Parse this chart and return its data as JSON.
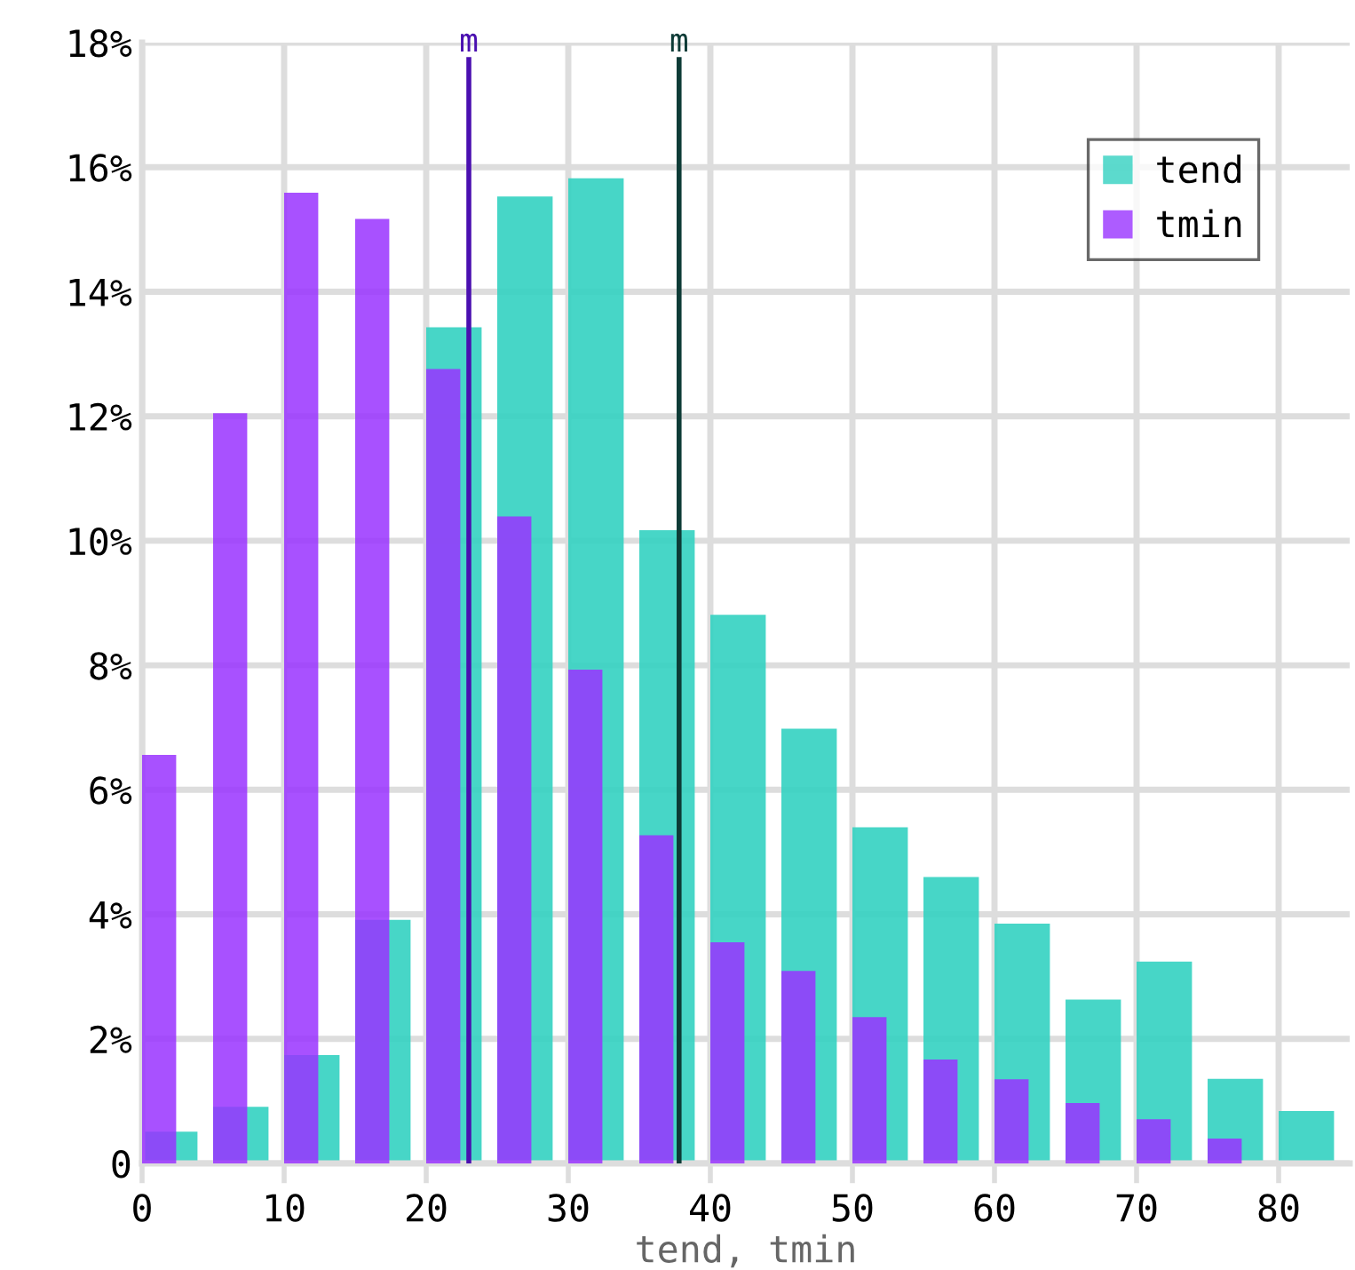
{
  "chart_data": {
    "type": "histogram",
    "xlabel": "tend, tmin",
    "bins": [
      0,
      5,
      10,
      15,
      20,
      25,
      30,
      35,
      40,
      45,
      50,
      55,
      60,
      65,
      70,
      75,
      80,
      85
    ],
    "series": [
      {
        "name": "tend",
        "color": "#33d1c1",
        "values": [
          0.51,
          0.91,
          1.74,
          3.91,
          13.43,
          15.53,
          15.82,
          10.17,
          8.81,
          6.98,
          5.4,
          4.6,
          3.85,
          2.63,
          3.24,
          1.36,
          0.84
        ]
      },
      {
        "name": "tmin",
        "color": "#9933ff",
        "values": [
          6.56,
          12.05,
          15.59,
          15.17,
          12.76,
          10.39,
          7.93,
          5.27,
          3.55,
          3.09,
          2.35,
          1.67,
          1.35,
          0.97,
          0.71,
          0.4,
          0
        ]
      }
    ],
    "xlim": [
      0,
      85
    ],
    "xticks": [
      0,
      10,
      20,
      30,
      40,
      50,
      60,
      70,
      80
    ],
    "ylim": [
      0,
      18
    ],
    "yticks": [
      {
        "value": 0,
        "label": "0"
      },
      {
        "value": 2,
        "label": "2%"
      },
      {
        "value": 4,
        "label": "4%"
      },
      {
        "value": 6,
        "label": "6%"
      },
      {
        "value": 8,
        "label": "8%"
      },
      {
        "value": 10,
        "label": "10%"
      },
      {
        "value": 12,
        "label": "12%"
      },
      {
        "value": 14,
        "label": "14%"
      },
      {
        "value": 16,
        "label": "16%"
      },
      {
        "value": 18,
        "label": "18%"
      }
    ],
    "ref_lines": [
      {
        "axis": "x",
        "value": 23.0,
        "label": "m",
        "color": "#4a0fb0"
      },
      {
        "axis": "x",
        "value": 37.8,
        "label": "m",
        "color": "#0d3b36"
      }
    ],
    "grid": true,
    "legend": "top right"
  }
}
